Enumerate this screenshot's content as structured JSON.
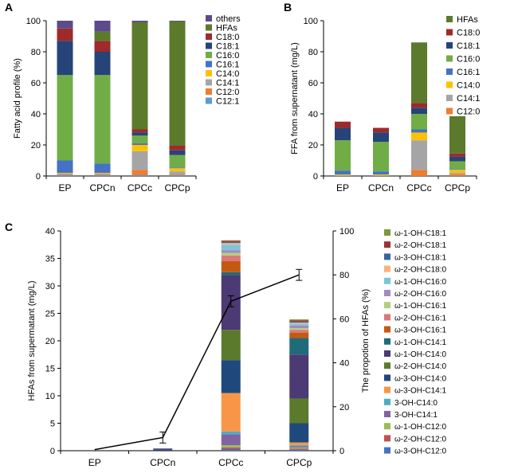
{
  "chart_data": [
    {
      "panel": "A",
      "type": "bar",
      "stacked": true,
      "categories": [
        "EP",
        "CPCn",
        "CPCc",
        "CPCp"
      ],
      "ylabel": "Fatty acid profile (%)",
      "xlabel": "",
      "ylim": [
        0,
        100
      ],
      "yticks": [
        "0",
        "20",
        "40",
        "60",
        "80",
        "100"
      ],
      "series": [
        {
          "name": "C12:1",
          "color": "#5b9bd5",
          "values": [
            0.5,
            0.5,
            0.5,
            0.5
          ]
        },
        {
          "name": "C12:0",
          "color": "#ed7d31",
          "values": [
            0.5,
            0.5,
            3.5,
            0.5
          ]
        },
        {
          "name": "C14:1",
          "color": "#a5a5a5",
          "values": [
            0.5,
            0.5,
            12,
            2
          ]
        },
        {
          "name": "C14:0",
          "color": "#ffc000",
          "values": [
            0.5,
            0.5,
            4,
            2
          ]
        },
        {
          "name": "C16:1",
          "color": "#4472c4",
          "values": [
            8,
            6,
            1,
            0.5
          ]
        },
        {
          "name": "C16:0",
          "color": "#70ad47",
          "values": [
            55,
            57,
            5,
            8
          ]
        },
        {
          "name": "C18:1",
          "color": "#264478",
          "values": [
            22,
            15,
            2,
            3
          ]
        },
        {
          "name": "C18:0",
          "color": "#9e2a2b",
          "values": [
            8,
            7,
            2,
            3
          ]
        },
        {
          "name": "HFAs",
          "color": "#5b7a2c",
          "values": [
            0,
            6,
            69,
            80
          ]
        },
        {
          "name": "others",
          "color": "#5c4a8a",
          "values": [
            5,
            7,
            1,
            0.5
          ]
        }
      ],
      "legend": [
        "others",
        "HFAs",
        "C18:0",
        "C18:1",
        "C16:0",
        "C16:1",
        "C14:0",
        "C14:1",
        "C12:0",
        "C12:1"
      ]
    },
    {
      "panel": "B",
      "type": "bar",
      "stacked": true,
      "categories": [
        "EP",
        "CPCn",
        "CPCc",
        "CPCp"
      ],
      "ylabel": "FFA from supernatant (mg/L)",
      "xlabel": "",
      "ylim": [
        0,
        100
      ],
      "yticks": [
        "0",
        "20",
        "40",
        "60",
        "80",
        "100"
      ],
      "series": [
        {
          "name": "C12:0",
          "color": "#ed7d31",
          "values": [
            0,
            0,
            4,
            1
          ]
        },
        {
          "name": "C14:1",
          "color": "#a5a5a5",
          "values": [
            0.5,
            0.5,
            19,
            1
          ]
        },
        {
          "name": "C14:0",
          "color": "#ffc000",
          "values": [
            0.5,
            0.5,
            5,
            2
          ]
        },
        {
          "name": "C16:1",
          "color": "#4472c4",
          "values": [
            2.5,
            2,
            2,
            0.5
          ]
        },
        {
          "name": "C16:0",
          "color": "#70ad47",
          "values": [
            19.5,
            19,
            10,
            5
          ]
        },
        {
          "name": "C18:1",
          "color": "#264478",
          "values": [
            8,
            6,
            4,
            3
          ]
        },
        {
          "name": "C18:0",
          "color": "#9e2a2b",
          "values": [
            4,
            3,
            3,
            2
          ]
        },
        {
          "name": "HFAs",
          "color": "#5b7a2c",
          "values": [
            0,
            0,
            39,
            24
          ]
        }
      ],
      "legend": [
        "HFAs",
        "C18:0",
        "C18:1",
        "C16:0",
        "C16:1",
        "C14:0",
        "C14:1",
        "C12:0"
      ]
    },
    {
      "panel": "C",
      "type": "bar+line",
      "stacked": true,
      "categories": [
        "EP",
        "CPCn",
        "CPCc",
        "CPCp"
      ],
      "ylabel": "HFAs  from supermatant (mg/L)",
      "y2label": "The propotion of HFAs (%)",
      "xlabel": "",
      "ylim": [
        0,
        40
      ],
      "y2lim": [
        0,
        100
      ],
      "yticks": [
        "0",
        "5",
        "10",
        "15",
        "20",
        "25",
        "30",
        "35",
        "40"
      ],
      "y2ticks": [
        "0",
        "20",
        "40",
        "60",
        "80",
        "100"
      ],
      "series": [
        {
          "name": "ω-3-OH-C12:0",
          "color": "#4472c4",
          "values": [
            0,
            0,
            0.3,
            0.2
          ]
        },
        {
          "name": "ω-2-OH-C12:0",
          "color": "#c0504d",
          "values": [
            0,
            0,
            0.3,
            0.2
          ]
        },
        {
          "name": "ω-1-OH-C12:0",
          "color": "#9bbb59",
          "values": [
            0,
            0,
            0.4,
            0.2
          ]
        },
        {
          "name": "3-OH-C14:1",
          "color": "#8064a2",
          "values": [
            0,
            0,
            2,
            0.2
          ]
        },
        {
          "name": "3-OH-C14:0",
          "color": "#4bacc6",
          "values": [
            0,
            0,
            0.5,
            0.2
          ]
        },
        {
          "name": "ω-3-OH-C14:1",
          "color": "#f79646",
          "values": [
            0,
            0,
            7,
            0.5
          ]
        },
        {
          "name": "ω-3-OH-C14:0",
          "color": "#1f497d",
          "values": [
            0,
            0.2,
            6,
            3.5
          ]
        },
        {
          "name": "ω-2-OH-C14:0",
          "color": "#5b7a2c",
          "values": [
            0,
            0,
            5.5,
            4.5
          ]
        },
        {
          "name": "ω-1-OH-C14:0",
          "color": "#4b3a73",
          "values": [
            0,
            0.2,
            10,
            8
          ]
        },
        {
          "name": "ω-1-OH-C14:1",
          "color": "#1f6b7a",
          "values": [
            0,
            0,
            0.5,
            3
          ]
        },
        {
          "name": "ω-3-OH-C16:1",
          "color": "#c45a11",
          "values": [
            0,
            0,
            2,
            1
          ]
        },
        {
          "name": "ω-2-OH-C16:1",
          "color": "#d9777a",
          "values": [
            0,
            0,
            1,
            0.5
          ]
        },
        {
          "name": "ω-1-OH-C16:1",
          "color": "#b3cf7a",
          "values": [
            0,
            0,
            0.5,
            0.3
          ]
        },
        {
          "name": "ω-2-OH-C16:0",
          "color": "#a08bbf",
          "values": [
            0,
            0,
            0.5,
            0.5
          ]
        },
        {
          "name": "ω-1-OH-C16:0",
          "color": "#7cc5d8",
          "values": [
            0,
            0,
            1,
            0.3
          ]
        },
        {
          "name": "ω-2-OH-C18:0",
          "color": "#fab27a",
          "values": [
            0,
            0,
            0.3,
            0.2
          ]
        },
        {
          "name": "ω-3-OH-C18:1",
          "color": "#3564a8",
          "values": [
            0,
            0,
            0.2,
            0.2
          ]
        },
        {
          "name": "ω-2-OH-C18:1",
          "color": "#9c3230",
          "values": [
            0,
            0,
            0.2,
            0.2
          ]
        },
        {
          "name": "ω-1-OH-C18:1",
          "color": "#7b9a3a",
          "values": [
            0,
            0,
            0.1,
            0.2
          ]
        }
      ],
      "line": {
        "name": "The propotion of HFAs (%)",
        "axis": "y2",
        "values": [
          0.5,
          6,
          68,
          80
        ],
        "errors": [
          0,
          2.5,
          2.5,
          2.5
        ]
      },
      "legend": [
        "ω-1-OH-C18:1",
        "ω-2-OH-C18:1",
        "ω-3-OH-C18:1",
        "ω-2-OH-C18:0",
        "ω-1-OH-C16:0",
        "ω-2-OH-C16:0",
        "ω-1-OH-C16:1",
        "ω-2-OH-C16:1",
        "ω-3-OH-C16:1",
        "ω-1-OH-C14:1",
        "ω-1-OH-C14:0",
        "ω-2-OH-C14:0",
        "ω-3-OH-C14:0",
        "ω-3-OH-C14:1",
        "3-OH-C14:0",
        "3-OH-C14:1",
        "ω-1-OH-C12:0",
        "ω-2-OH-C12:0",
        "ω-3-OH-C12:0"
      ]
    }
  ]
}
